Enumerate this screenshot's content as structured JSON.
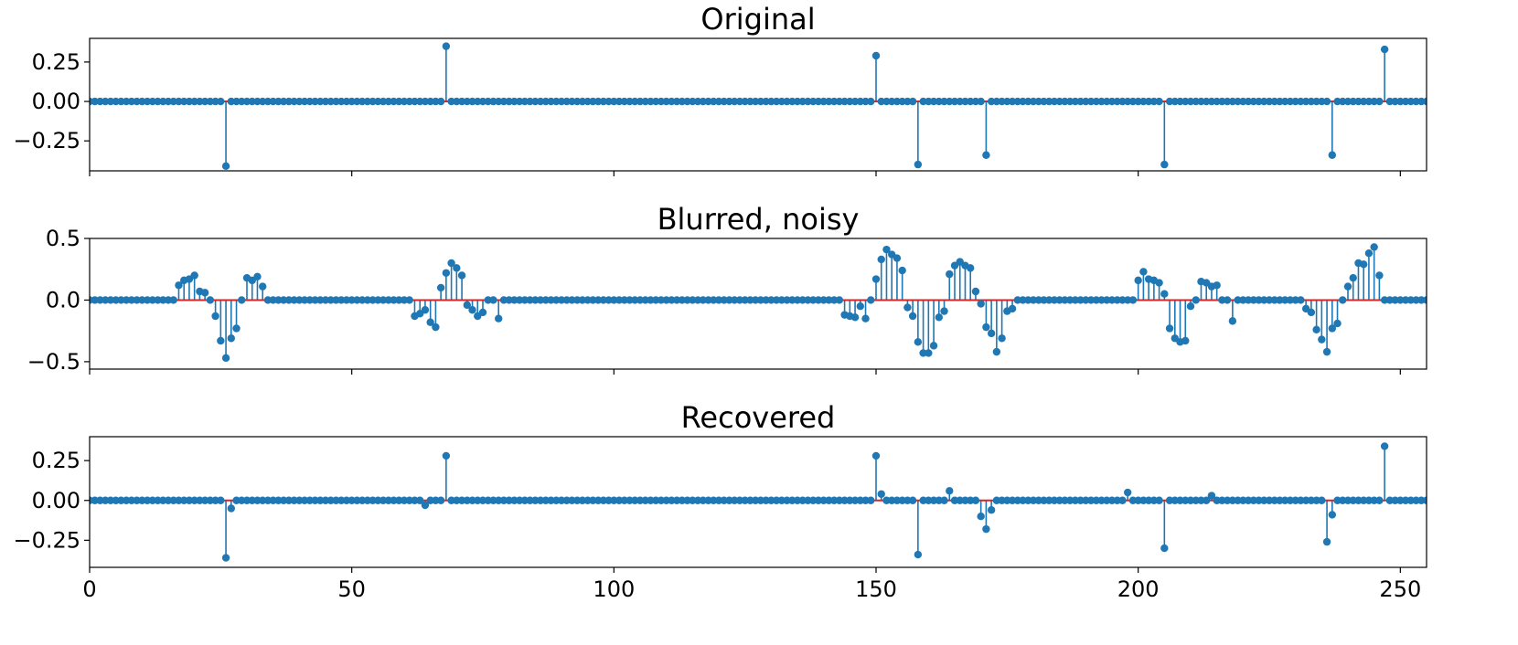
{
  "chart_data": [
    {
      "type": "stem",
      "title": "Original",
      "xlim": [
        0,
        255
      ],
      "ylim": [
        -0.44,
        0.4
      ],
      "yticks": [
        0.25,
        0.0,
        -0.25
      ],
      "ytick_labels": [
        "0.25",
        "0.00",
        "−0.25"
      ],
      "xticks": [
        0,
        50,
        100,
        150,
        200,
        250
      ],
      "xtick_labels": [],
      "colors": {
        "stem": "#1f77b4",
        "baseline": "#d62728"
      },
      "points": [
        {
          "x": 26,
          "y": -0.41
        },
        {
          "x": 68,
          "y": 0.35
        },
        {
          "x": 150,
          "y": 0.29
        },
        {
          "x": 158,
          "y": -0.4
        },
        {
          "x": 171,
          "y": -0.34
        },
        {
          "x": 205,
          "y": -0.4
        },
        {
          "x": 237,
          "y": -0.34
        },
        {
          "x": 247,
          "y": 0.33
        }
      ]
    },
    {
      "type": "stem",
      "title": "Blurred, noisy",
      "xlim": [
        0,
        255
      ],
      "ylim": [
        -0.56,
        0.5
      ],
      "yticks": [
        0.5,
        0.0,
        -0.5
      ],
      "ytick_labels": [
        "0.5",
        "0.0",
        "−0.5"
      ],
      "xticks": [
        0,
        50,
        100,
        150,
        200,
        250
      ],
      "xtick_labels": [],
      "colors": {
        "stem": "#1f77b4",
        "baseline": "#d62728"
      },
      "points": [
        {
          "x": 17,
          "y": 0.12
        },
        {
          "x": 18,
          "y": 0.16
        },
        {
          "x": 19,
          "y": 0.17
        },
        {
          "x": 20,
          "y": 0.2
        },
        {
          "x": 21,
          "y": 0.07
        },
        {
          "x": 22,
          "y": 0.06
        },
        {
          "x": 24,
          "y": -0.13
        },
        {
          "x": 25,
          "y": -0.33
        },
        {
          "x": 26,
          "y": -0.47
        },
        {
          "x": 27,
          "y": -0.31
        },
        {
          "x": 28,
          "y": -0.23
        },
        {
          "x": 30,
          "y": 0.18
        },
        {
          "x": 31,
          "y": 0.16
        },
        {
          "x": 32,
          "y": 0.19
        },
        {
          "x": 33,
          "y": 0.11
        },
        {
          "x": 62,
          "y": -0.13
        },
        {
          "x": 63,
          "y": -0.11
        },
        {
          "x": 64,
          "y": -0.08
        },
        {
          "x": 65,
          "y": -0.18
        },
        {
          "x": 66,
          "y": -0.22
        },
        {
          "x": 67,
          "y": 0.1
        },
        {
          "x": 68,
          "y": 0.22
        },
        {
          "x": 69,
          "y": 0.3
        },
        {
          "x": 70,
          "y": 0.26
        },
        {
          "x": 71,
          "y": 0.2
        },
        {
          "x": 72,
          "y": -0.04
        },
        {
          "x": 73,
          "y": -0.08
        },
        {
          "x": 74,
          "y": -0.13
        },
        {
          "x": 75,
          "y": -0.1
        },
        {
          "x": 78,
          "y": -0.15
        },
        {
          "x": 144,
          "y": -0.12
        },
        {
          "x": 145,
          "y": -0.13
        },
        {
          "x": 146,
          "y": -0.14
        },
        {
          "x": 147,
          "y": -0.05
        },
        {
          "x": 148,
          "y": -0.15
        },
        {
          "x": 150,
          "y": 0.17
        },
        {
          "x": 151,
          "y": 0.33
        },
        {
          "x": 152,
          "y": 0.41
        },
        {
          "x": 153,
          "y": 0.37
        },
        {
          "x": 154,
          "y": 0.34
        },
        {
          "x": 155,
          "y": 0.24
        },
        {
          "x": 156,
          "y": -0.06
        },
        {
          "x": 157,
          "y": -0.13
        },
        {
          "x": 158,
          "y": -0.34
        },
        {
          "x": 159,
          "y": -0.43
        },
        {
          "x": 160,
          "y": -0.43
        },
        {
          "x": 161,
          "y": -0.37
        },
        {
          "x": 162,
          "y": -0.14
        },
        {
          "x": 163,
          "y": -0.09
        },
        {
          "x": 164,
          "y": 0.21
        },
        {
          "x": 165,
          "y": 0.28
        },
        {
          "x": 166,
          "y": 0.31
        },
        {
          "x": 167,
          "y": 0.28
        },
        {
          "x": 168,
          "y": 0.26
        },
        {
          "x": 169,
          "y": 0.07
        },
        {
          "x": 170,
          "y": -0.03
        },
        {
          "x": 171,
          "y": -0.22
        },
        {
          "x": 172,
          "y": -0.27
        },
        {
          "x": 173,
          "y": -0.42
        },
        {
          "x": 174,
          "y": -0.31
        },
        {
          "x": 175,
          "y": -0.09
        },
        {
          "x": 176,
          "y": -0.07
        },
        {
          "x": 200,
          "y": 0.16
        },
        {
          "x": 201,
          "y": 0.23
        },
        {
          "x": 202,
          "y": 0.17
        },
        {
          "x": 203,
          "y": 0.16
        },
        {
          "x": 204,
          "y": 0.14
        },
        {
          "x": 205,
          "y": 0.05
        },
        {
          "x": 206,
          "y": -0.23
        },
        {
          "x": 207,
          "y": -0.31
        },
        {
          "x": 208,
          "y": -0.34
        },
        {
          "x": 209,
          "y": -0.33
        },
        {
          "x": 210,
          "y": -0.05
        },
        {
          "x": 212,
          "y": 0.15
        },
        {
          "x": 213,
          "y": 0.14
        },
        {
          "x": 214,
          "y": 0.11
        },
        {
          "x": 215,
          "y": 0.12
        },
        {
          "x": 218,
          "y": -0.17
        },
        {
          "x": 232,
          "y": -0.07
        },
        {
          "x": 233,
          "y": -0.1
        },
        {
          "x": 234,
          "y": -0.24
        },
        {
          "x": 235,
          "y": -0.32
        },
        {
          "x": 236,
          "y": -0.42
        },
        {
          "x": 237,
          "y": -0.23
        },
        {
          "x": 238,
          "y": -0.19
        },
        {
          "x": 240,
          "y": 0.11
        },
        {
          "x": 241,
          "y": 0.18
        },
        {
          "x": 242,
          "y": 0.3
        },
        {
          "x": 243,
          "y": 0.29
        },
        {
          "x": 244,
          "y": 0.38
        },
        {
          "x": 245,
          "y": 0.43
        },
        {
          "x": 246,
          "y": 0.2
        }
      ]
    },
    {
      "type": "stem",
      "title": "Recovered",
      "xlim": [
        0,
        255
      ],
      "ylim": [
        -0.42,
        0.4
      ],
      "yticks": [
        0.25,
        0.0,
        -0.25
      ],
      "ytick_labels": [
        "0.25",
        "0.00",
        "−0.25"
      ],
      "xticks": [
        0,
        50,
        100,
        150,
        200,
        250
      ],
      "xtick_labels": [
        "0",
        "50",
        "100",
        "150",
        "200",
        "250"
      ],
      "colors": {
        "stem": "#1f77b4",
        "baseline": "#d62728"
      },
      "points": [
        {
          "x": 26,
          "y": -0.36
        },
        {
          "x": 27,
          "y": -0.05
        },
        {
          "x": 64,
          "y": -0.03
        },
        {
          "x": 68,
          "y": 0.28
        },
        {
          "x": 150,
          "y": 0.28
        },
        {
          "x": 151,
          "y": 0.04
        },
        {
          "x": 158,
          "y": -0.34
        },
        {
          "x": 164,
          "y": 0.06
        },
        {
          "x": 170,
          "y": -0.1
        },
        {
          "x": 171,
          "y": -0.18
        },
        {
          "x": 172,
          "y": -0.06
        },
        {
          "x": 198,
          "y": 0.05
        },
        {
          "x": 205,
          "y": -0.3
        },
        {
          "x": 214,
          "y": 0.03
        },
        {
          "x": 236,
          "y": -0.26
        },
        {
          "x": 237,
          "y": -0.09
        },
        {
          "x": 247,
          "y": 0.34
        }
      ]
    }
  ]
}
